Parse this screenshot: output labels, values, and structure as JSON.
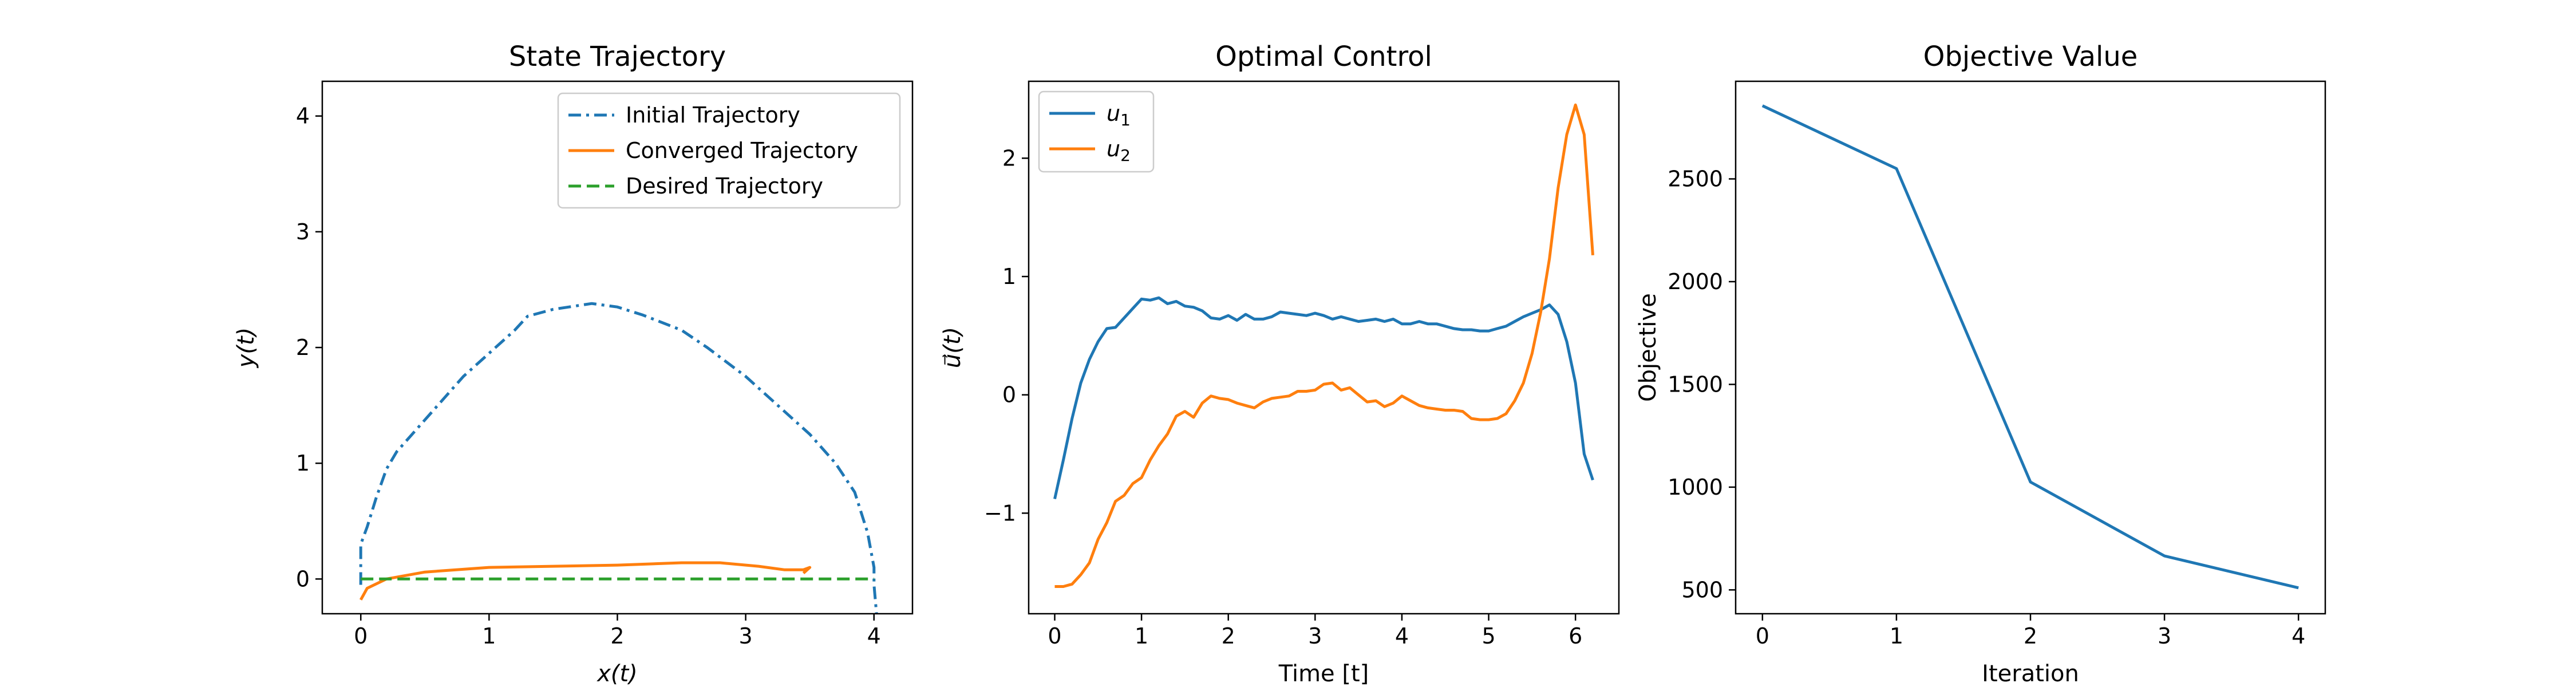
{
  "chart_data": [
    {
      "type": "line",
      "title": "State Trajectory",
      "xlabel": "x(t)",
      "ylabel": "y(t)",
      "xlim": [
        -0.3,
        4.3
      ],
      "ylim": [
        -0.3,
        4.3
      ],
      "xticks": [
        0,
        1,
        2,
        3,
        4
      ],
      "yticks": [
        0,
        1,
        2,
        3,
        4
      ],
      "legend": "top-right",
      "series": [
        {
          "name": "Initial Trajectory",
          "color": "#1f77b4",
          "dash": "dashdot",
          "x": [
            0,
            0,
            0.05,
            0.12,
            0.2,
            0.28,
            0.4,
            0.6,
            0.8,
            1.0,
            1.2,
            1.3,
            1.5,
            1.8,
            2.0,
            2.2,
            2.5,
            2.7,
            3.0,
            3.3,
            3.5,
            3.7,
            3.85,
            3.95,
            4.0,
            4.0,
            4.02
          ],
          "y": [
            -0.05,
            0.3,
            0.45,
            0.7,
            0.95,
            1.1,
            1.25,
            1.5,
            1.75,
            1.95,
            2.15,
            2.27,
            2.33,
            2.38,
            2.35,
            2.28,
            2.15,
            2.0,
            1.75,
            1.45,
            1.25,
            1.0,
            0.75,
            0.4,
            0.1,
            -0.05,
            -0.3
          ]
        },
        {
          "name": "Converged Trajectory",
          "color": "#ff7f0e",
          "dash": "solid",
          "x": [
            0,
            0.05,
            0.2,
            0.5,
            1.0,
            1.5,
            2.0,
            2.5,
            2.8,
            3.1,
            3.3,
            3.4,
            3.45,
            3.5,
            3.45
          ],
          "y": [
            -0.18,
            -0.08,
            0.0,
            0.06,
            0.1,
            0.11,
            0.12,
            0.14,
            0.14,
            0.11,
            0.08,
            0.08,
            0.08,
            0.1,
            0.05
          ]
        },
        {
          "name": "Desired Trajectory",
          "color": "#2ca02c",
          "dash": "dashed",
          "x": [
            0,
            4.0
          ],
          "y": [
            0,
            0
          ]
        }
      ]
    },
    {
      "type": "line",
      "title": "Optimal Control",
      "xlabel": "Time [t]",
      "ylabel": "u⃗(t)",
      "xlim": [
        -0.3,
        6.5
      ],
      "ylim": [
        -1.85,
        2.65
      ],
      "xticks": [
        0,
        1,
        2,
        3,
        4,
        5,
        6
      ],
      "yticks": [
        -1,
        0,
        1,
        2
      ],
      "legend": "top-left",
      "series": [
        {
          "name": "u1",
          "name_main": "u",
          "name_sub": "1",
          "color": "#1f77b4",
          "x": [
            0,
            0.1,
            0.2,
            0.3,
            0.4,
            0.5,
            0.6,
            0.7,
            0.8,
            0.9,
            1.0,
            1.1,
            1.2,
            1.3,
            1.4,
            1.5,
            1.6,
            1.7,
            1.8,
            1.9,
            2.0,
            2.1,
            2.2,
            2.3,
            2.4,
            2.5,
            2.6,
            2.7,
            2.8,
            2.9,
            3.0,
            3.1,
            3.2,
            3.3,
            3.4,
            3.5,
            3.6,
            3.7,
            3.8,
            3.9,
            4.0,
            4.1,
            4.2,
            4.3,
            4.4,
            4.5,
            4.6,
            4.7,
            4.8,
            4.9,
            5.0,
            5.1,
            5.2,
            5.3,
            5.4,
            5.5,
            5.6,
            5.7,
            5.8,
            5.9,
            6.0,
            6.1,
            6.2
          ],
          "y": [
            -0.88,
            -0.55,
            -0.2,
            0.1,
            0.3,
            0.45,
            0.56,
            0.57,
            0.65,
            0.73,
            0.81,
            0.8,
            0.82,
            0.77,
            0.79,
            0.75,
            0.74,
            0.71,
            0.65,
            0.64,
            0.67,
            0.63,
            0.68,
            0.64,
            0.64,
            0.66,
            0.7,
            0.69,
            0.68,
            0.67,
            0.69,
            0.67,
            0.64,
            0.66,
            0.64,
            0.62,
            0.63,
            0.64,
            0.62,
            0.64,
            0.6,
            0.6,
            0.62,
            0.6,
            0.6,
            0.58,
            0.56,
            0.55,
            0.55,
            0.54,
            0.54,
            0.56,
            0.58,
            0.62,
            0.66,
            0.69,
            0.72,
            0.76,
            0.68,
            0.45,
            0.1,
            -0.5,
            -0.72
          ]
        },
        {
          "name": "u2",
          "name_main": "u",
          "name_sub": "2",
          "color": "#ff7f0e",
          "x": [
            0,
            0.1,
            0.2,
            0.3,
            0.4,
            0.5,
            0.6,
            0.7,
            0.8,
            0.9,
            1.0,
            1.1,
            1.2,
            1.3,
            1.4,
            1.5,
            1.6,
            1.7,
            1.8,
            1.9,
            2.0,
            2.1,
            2.2,
            2.3,
            2.4,
            2.5,
            2.6,
            2.7,
            2.8,
            2.9,
            3.0,
            3.1,
            3.2,
            3.3,
            3.4,
            3.5,
            3.6,
            3.7,
            3.8,
            3.9,
            4.0,
            4.1,
            4.2,
            4.3,
            4.4,
            4.5,
            4.6,
            4.7,
            4.8,
            4.9,
            5.0,
            5.1,
            5.2,
            5.3,
            5.4,
            5.5,
            5.6,
            5.7,
            5.8,
            5.9,
            6.0,
            6.1,
            6.2
          ],
          "y": [
            -1.62,
            -1.62,
            -1.6,
            -1.52,
            -1.42,
            -1.22,
            -1.08,
            -0.9,
            -0.85,
            -0.75,
            -0.7,
            -0.55,
            -0.43,
            -0.33,
            -0.18,
            -0.14,
            -0.19,
            -0.07,
            -0.01,
            -0.03,
            -0.04,
            -0.07,
            -0.09,
            -0.11,
            -0.06,
            -0.03,
            -0.02,
            -0.01,
            0.03,
            0.03,
            0.04,
            0.09,
            0.1,
            0.04,
            0.06,
            0.0,
            -0.06,
            -0.05,
            -0.1,
            -0.07,
            -0.01,
            -0.05,
            -0.09,
            -0.11,
            -0.12,
            -0.13,
            -0.13,
            -0.14,
            -0.2,
            -0.21,
            -0.21,
            -0.2,
            -0.16,
            -0.05,
            0.1,
            0.35,
            0.7,
            1.15,
            1.75,
            2.2,
            2.45,
            2.2,
            1.18
          ]
        }
      ]
    },
    {
      "type": "line",
      "title": "Objective Value",
      "xlabel": "Iteration",
      "ylabel": "Objective",
      "xlim": [
        -0.2,
        4.2
      ],
      "ylim": [
        384,
        2975
      ],
      "xticks": [
        0,
        1,
        2,
        3,
        4
      ],
      "yticks": [
        500,
        1000,
        1500,
        2000,
        2500
      ],
      "series": [
        {
          "color": "#1f77b4",
          "x": [
            0,
            1,
            2,
            3,
            4
          ],
          "y": [
            2856,
            2550,
            1025,
            665,
            510
          ]
        }
      ]
    }
  ]
}
